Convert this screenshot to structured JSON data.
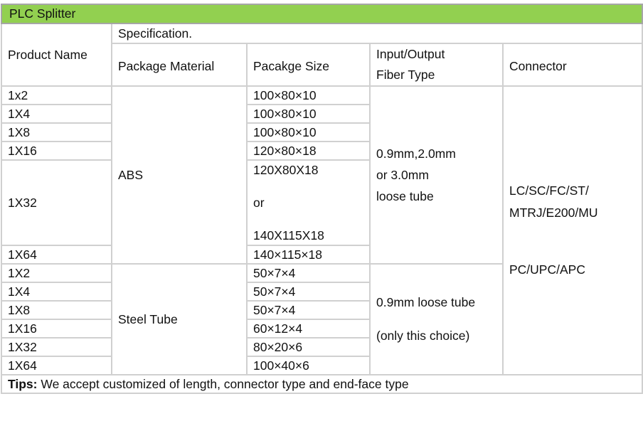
{
  "title": "PLC Splitter",
  "headers": {
    "product_name": "Product Name",
    "specification": "Specification.",
    "package_material": "Package Material",
    "package_size": "Pacakge Size",
    "fiber_type_line1": "Input/Output",
    "fiber_type_line2": "Fiber Type",
    "connector": "Connector"
  },
  "abs_group": {
    "material": "ABS",
    "fiber_line1": "0.9mm,2.0mm",
    "fiber_line2": "or 3.0mm",
    "fiber_line3": "loose tube",
    "rows": [
      {
        "name": "1x2",
        "size": "100×80×10"
      },
      {
        "name": "1X4",
        "size": "100×80×10"
      },
      {
        "name": "1X8",
        "size": "100×80×10"
      },
      {
        "name": "1X16",
        "size": "120×80×18"
      },
      {
        "name": "1X32",
        "size_line1": "120X80X18",
        "size_line2": "or",
        "size_line3": "140X115X18"
      },
      {
        "name": "1X64",
        "size": "140×115×18"
      }
    ]
  },
  "steel_group": {
    "material": "Steel Tube",
    "fiber_line1": "0.9mm loose tube",
    "fiber_line2": "(only this choice)",
    "rows": [
      {
        "name": "1X2",
        "size": "50×7×4"
      },
      {
        "name": "1X4",
        "size": "50×7×4"
      },
      {
        "name": "1X8",
        "size": "50×7×4"
      },
      {
        "name": "1X16",
        "size": "60×12×4"
      },
      {
        "name": "1X32",
        "size": "80×20×6"
      },
      {
        "name": "1X64",
        "size": "100×40×6"
      }
    ]
  },
  "connector": {
    "line1": "LC/SC/FC/ST/",
    "line2": "MTRJ/E200/MU",
    "line3": "PC/UPC/APC"
  },
  "tips": {
    "label": "Tips:",
    "text": " We accept customized of length, connector type and end-face type"
  },
  "colors": {
    "title_bg": "#92d050",
    "grid": "#d0d0d0"
  }
}
